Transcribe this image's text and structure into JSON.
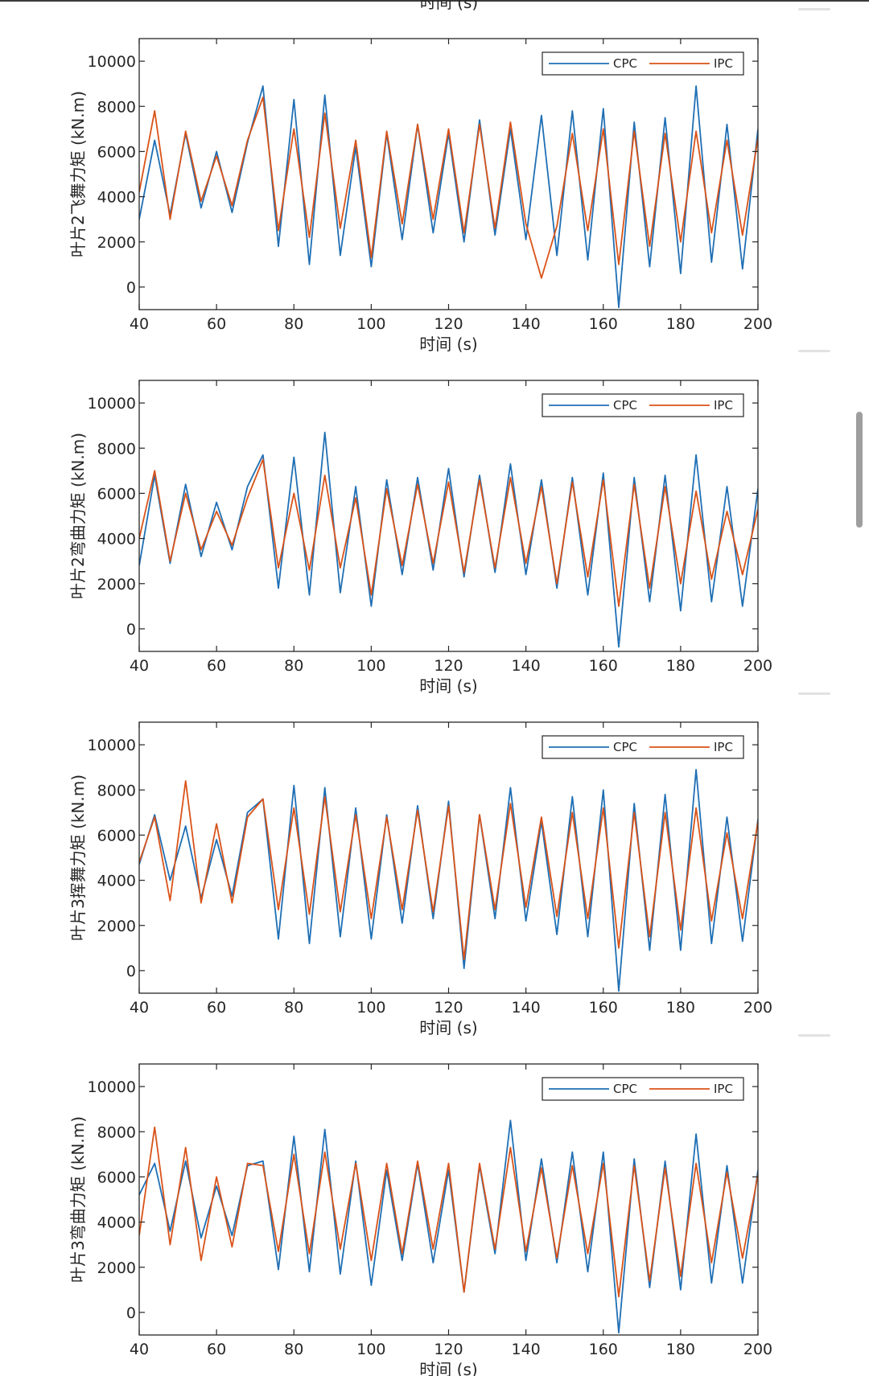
{
  "page": {
    "top_xlabel_fragment": "时间 (s)"
  },
  "colors": {
    "cpc": "#1f6fb4",
    "ipc": "#d95319",
    "axes": "#262626",
    "grid_tick": "#262626",
    "scrollbar": "#9e9e9e"
  },
  "chart_data": [
    {
      "type": "line",
      "ylabel": "叶片2飞舞力矩 (kN.m)",
      "xlabel": "时间 (s)",
      "xlim": [
        40,
        200
      ],
      "ylim": [
        -1000,
        11000
      ],
      "xticks": [
        40,
        60,
        80,
        100,
        120,
        140,
        160,
        180,
        200
      ],
      "xtick_labels": [
        "40",
        "60",
        "80",
        "100",
        "120",
        "140",
        "160",
        "180",
        "200"
      ],
      "yticks": [
        0,
        2000,
        4000,
        6000,
        8000,
        10000
      ],
      "ytick_labels": [
        "0",
        "2000",
        "4000",
        "6000",
        "8000",
        "10000"
      ],
      "legend": {
        "location": "top-right",
        "entries": [
          "CPC",
          "IPC"
        ]
      },
      "series": [
        {
          "name": "CPC",
          "x": [
            40,
            44,
            48,
            52,
            56,
            60,
            64,
            68,
            72,
            76,
            80,
            84,
            88,
            92,
            96,
            100,
            104,
            108,
            112,
            116,
            120,
            124,
            128,
            132,
            136,
            140,
            144,
            148,
            152,
            156,
            160,
            164,
            168,
            172,
            176,
            180,
            184,
            188,
            192,
            196,
            200
          ],
          "values": [
            3000,
            6500,
            3200,
            6800,
            3500,
            6000,
            3300,
            6400,
            8900,
            1800,
            8300,
            1000,
            8500,
            1400,
            6200,
            900,
            6800,
            2100,
            7200,
            2400,
            6800,
            2000,
            7400,
            2300,
            7000,
            2100,
            7600,
            1400,
            7800,
            1200,
            7900,
            -900,
            7300,
            900,
            7500,
            600,
            8900,
            1100,
            7200,
            800,
            7000
          ]
        },
        {
          "name": "IPC",
          "x": [
            40,
            44,
            48,
            52,
            56,
            60,
            64,
            68,
            72,
            76,
            80,
            84,
            88,
            92,
            96,
            100,
            104,
            108,
            112,
            116,
            120,
            124,
            128,
            132,
            136,
            140,
            144,
            148,
            152,
            156,
            160,
            164,
            168,
            172,
            176,
            180,
            184,
            188,
            192,
            196,
            200
          ],
          "values": [
            4200,
            7800,
            3000,
            6900,
            3800,
            5800,
            3600,
            6500,
            8400,
            2500,
            7000,
            2200,
            7700,
            2600,
            6500,
            1300,
            6900,
            2800,
            7200,
            3000,
            7000,
            2400,
            7200,
            2600,
            7300,
            2800,
            400,
            2700,
            6800,
            2500,
            7000,
            1000,
            6900,
            1800,
            6800,
            2000,
            6900,
            2400,
            6500,
            2300,
            6600
          ]
        }
      ]
    },
    {
      "type": "line",
      "ylabel": "叶片2弯曲力矩 (kN.m)",
      "xlabel": "时间 (s)",
      "xlim": [
        40,
        200
      ],
      "ylim": [
        -1000,
        11000
      ],
      "xticks": [
        40,
        60,
        80,
        100,
        120,
        140,
        160,
        180,
        200
      ],
      "xtick_labels": [
        "40",
        "60",
        "80",
        "100",
        "120",
        "140",
        "160",
        "180",
        "200"
      ],
      "yticks": [
        0,
        2000,
        4000,
        6000,
        8000,
        10000
      ],
      "ytick_labels": [
        "0",
        "2000",
        "4000",
        "6000",
        "8000",
        "10000"
      ],
      "legend": {
        "location": "top-right",
        "entries": [
          "CPC",
          "IPC"
        ]
      },
      "series": [
        {
          "name": "CPC",
          "x": [
            40,
            44,
            48,
            52,
            56,
            60,
            64,
            68,
            72,
            76,
            80,
            84,
            88,
            92,
            96,
            100,
            104,
            108,
            112,
            116,
            120,
            124,
            128,
            132,
            136,
            140,
            144,
            148,
            152,
            156,
            160,
            164,
            168,
            172,
            176,
            180,
            184,
            188,
            192,
            196,
            200
          ],
          "values": [
            2800,
            6800,
            2900,
            6400,
            3200,
            5600,
            3500,
            6300,
            7700,
            1800,
            7600,
            1500,
            8700,
            1600,
            6300,
            1000,
            6600,
            2400,
            6700,
            2600,
            7100,
            2300,
            6800,
            2500,
            7300,
            2400,
            6600,
            1800,
            6700,
            1500,
            6900,
            -800,
            6700,
            1200,
            6800,
            800,
            7700,
            1200,
            6300,
            1000,
            6200
          ]
        },
        {
          "name": "IPC",
          "x": [
            40,
            44,
            48,
            52,
            56,
            60,
            64,
            68,
            72,
            76,
            80,
            84,
            88,
            92,
            96,
            100,
            104,
            108,
            112,
            116,
            120,
            124,
            128,
            132,
            136,
            140,
            144,
            148,
            152,
            156,
            160,
            164,
            168,
            172,
            176,
            180,
            184,
            188,
            192,
            196,
            200
          ],
          "values": [
            4000,
            7000,
            3000,
            6000,
            3500,
            5200,
            3700,
            5800,
            7500,
            2700,
            6000,
            2600,
            6800,
            2700,
            5800,
            1500,
            6200,
            2800,
            6400,
            2900,
            6500,
            2500,
            6600,
            2700,
            6700,
            2900,
            6300,
            2000,
            6500,
            2300,
            6600,
            1000,
            6400,
            1800,
            6300,
            2000,
            6100,
            2200,
            5200,
            2400,
            5300
          ]
        }
      ]
    },
    {
      "type": "line",
      "ylabel": "叶片3挥舞力矩 (kN.m)",
      "xlabel": "时间 (s)",
      "xlim": [
        40,
        200
      ],
      "ylim": [
        -1000,
        11000
      ],
      "xticks": [
        40,
        60,
        80,
        100,
        120,
        140,
        160,
        180,
        200
      ],
      "xtick_labels": [
        "40",
        "60",
        "80",
        "100",
        "120",
        "140",
        "160",
        "180",
        "200"
      ],
      "yticks": [
        0,
        2000,
        4000,
        6000,
        8000,
        10000
      ],
      "ytick_labels": [
        "0",
        "2000",
        "4000",
        "6000",
        "8000",
        "10000"
      ],
      "legend": {
        "location": "top-right",
        "entries": [
          "CPC",
          "IPC"
        ]
      },
      "series": [
        {
          "name": "CPC",
          "x": [
            40,
            44,
            48,
            52,
            56,
            60,
            64,
            68,
            72,
            76,
            80,
            84,
            88,
            92,
            96,
            100,
            104,
            108,
            112,
            116,
            120,
            124,
            128,
            132,
            136,
            140,
            144,
            148,
            152,
            156,
            160,
            164,
            168,
            172,
            176,
            180,
            184,
            188,
            192,
            196,
            200
          ],
          "values": [
            4700,
            6900,
            4000,
            6400,
            3200,
            5800,
            3300,
            7000,
            7600,
            1400,
            8200,
            1200,
            8100,
            1500,
            7200,
            1400,
            6900,
            2100,
            7300,
            2300,
            7500,
            100,
            6900,
            2300,
            8100,
            2200,
            6600,
            1600,
            7700,
            1500,
            8000,
            -900,
            7400,
            900,
            7800,
            900,
            8900,
            1200,
            6800,
            1300,
            6700
          ]
        },
        {
          "name": "IPC",
          "x": [
            40,
            44,
            48,
            52,
            56,
            60,
            64,
            68,
            72,
            76,
            80,
            84,
            88,
            92,
            96,
            100,
            104,
            108,
            112,
            116,
            120,
            124,
            128,
            132,
            136,
            140,
            144,
            148,
            152,
            156,
            160,
            164,
            168,
            172,
            176,
            180,
            184,
            188,
            192,
            196,
            200
          ],
          "values": [
            4800,
            6800,
            3100,
            8400,
            3000,
            6500,
            3000,
            6800,
            7600,
            2700,
            7200,
            2500,
            7700,
            2600,
            6900,
            2300,
            6800,
            2700,
            7100,
            2600,
            7300,
            500,
            6900,
            2700,
            7400,
            2800,
            6800,
            2400,
            7000,
            2300,
            7200,
            1000,
            7000,
            1500,
            7000,
            1800,
            7200,
            2200,
            6100,
            2300,
            6600
          ]
        }
      ]
    },
    {
      "type": "line",
      "ylabel": "叶片3弯曲力矩 (kN.m)",
      "xlabel": "时间 (s)",
      "xlim": [
        40,
        200
      ],
      "ylim": [
        -1000,
        11000
      ],
      "xticks": [
        40,
        60,
        80,
        100,
        120,
        140,
        160,
        180,
        200
      ],
      "xtick_labels": [
        "40",
        "60",
        "80",
        "100",
        "120",
        "140",
        "160",
        "180",
        "200"
      ],
      "yticks": [
        0,
        2000,
        4000,
        6000,
        8000,
        10000
      ],
      "ytick_labels": [
        "0",
        "2000",
        "4000",
        "6000",
        "8000",
        "10000"
      ],
      "legend": {
        "location": "top-right",
        "entries": [
          "CPC",
          "IPC"
        ]
      },
      "series": [
        {
          "name": "CPC",
          "x": [
            40,
            44,
            48,
            52,
            56,
            60,
            64,
            68,
            72,
            76,
            80,
            84,
            88,
            92,
            96,
            100,
            104,
            108,
            112,
            116,
            120,
            124,
            128,
            132,
            136,
            140,
            144,
            148,
            152,
            156,
            160,
            164,
            168,
            172,
            176,
            180,
            184,
            188,
            192,
            196,
            200
          ],
          "values": [
            5200,
            6600,
            3600,
            6700,
            3300,
            5600,
            3400,
            6500,
            6700,
            1900,
            7800,
            1800,
            8100,
            1700,
            6700,
            1200,
            6300,
            2300,
            6600,
            2200,
            6300,
            900,
            6500,
            2600,
            8500,
            2300,
            6800,
            2200,
            7100,
            1800,
            7100,
            -900,
            6800,
            1100,
            6700,
            1000,
            7900,
            1300,
            6500,
            1300,
            6300
          ]
        },
        {
          "name": "IPC",
          "x": [
            40,
            44,
            48,
            52,
            56,
            60,
            64,
            68,
            72,
            76,
            80,
            84,
            88,
            92,
            96,
            100,
            104,
            108,
            112,
            116,
            120,
            124,
            128,
            132,
            136,
            140,
            144,
            148,
            152,
            156,
            160,
            164,
            168,
            172,
            176,
            180,
            184,
            188,
            192,
            196,
            200
          ],
          "values": [
            3400,
            8200,
            3000,
            7300,
            2300,
            6000,
            2900,
            6600,
            6500,
            2700,
            7000,
            2600,
            7100,
            2800,
            6600,
            2300,
            6600,
            2600,
            6700,
            2800,
            6600,
            900,
            6600,
            2800,
            7300,
            2700,
            6400,
            2400,
            6500,
            2600,
            6600,
            700,
            6500,
            1400,
            6400,
            1600,
            6600,
            2200,
            6200,
            2400,
            6100
          ]
        }
      ]
    }
  ]
}
